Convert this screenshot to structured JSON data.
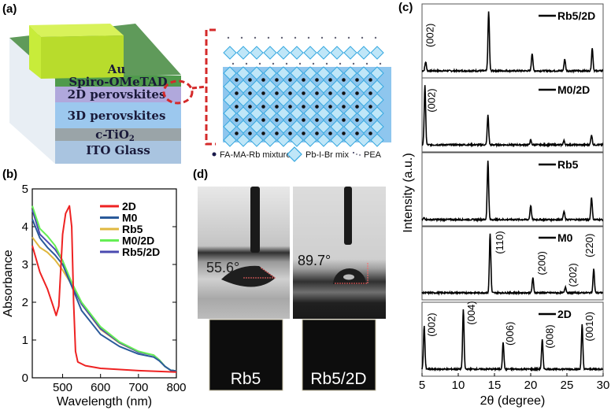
{
  "panel_labels": {
    "a": "(a)",
    "b": "(b)",
    "c": "(c)",
    "d": "(d)"
  },
  "device": {
    "layers": [
      "Au",
      "Spiro-OMeTAD",
      "2D perovskites",
      "3D perovskites",
      "c-TiO",
      "ITO Glass"
    ],
    "tio2_subscript": "2",
    "colors": {
      "au": "#c8ec3a",
      "spiro": "#4f9a4c",
      "perov2d": "#b0a8dc",
      "perov3d": "#9cc8ee",
      "tio2": "#9aa4a8",
      "ito": "#a9c4e0",
      "highlight": "#d42a2a"
    }
  },
  "crystal_legend": {
    "dot": "FA-MA-Rb mixture",
    "octahedron": "Pb-I-Br mix",
    "organic": "PEA"
  },
  "contact_angle": {
    "images": [
      {
        "angle": "55.6°",
        "label": "Rb5"
      },
      {
        "angle": "89.7°",
        "label": "Rb5/2D"
      }
    ]
  },
  "chart_data": [
    {
      "type": "line",
      "panel": "b",
      "xlabel": "Wavelength (nm)",
      "ylabel": "Absorbance",
      "xlim": [
        420,
        800
      ],
      "ylim": [
        0,
        5
      ],
      "xticks": [
        500,
        600,
        700,
        800
      ],
      "yticks": [
        0,
        1,
        2,
        3,
        4,
        5
      ],
      "legend_placement": "top-right",
      "series": [
        {
          "name": "2D",
          "color": "#ee2222",
          "points": [
            [
              420,
              3.5
            ],
            [
              440,
              2.8
            ],
            [
              460,
              2.35
            ],
            [
              475,
              1.9
            ],
            [
              483,
              1.65
            ],
            [
              490,
              1.9
            ],
            [
              500,
              3.8
            ],
            [
              508,
              4.35
            ],
            [
              518,
              4.55
            ],
            [
              524,
              4.0
            ],
            [
              529,
              2.0
            ],
            [
              534,
              0.7
            ],
            [
              540,
              0.42
            ],
            [
              560,
              0.32
            ],
            [
              600,
              0.25
            ],
            [
              700,
              0.19
            ],
            [
              800,
              0.15
            ]
          ]
        },
        {
          "name": "M0",
          "color": "#2a5a9a",
          "points": [
            [
              420,
              4.2
            ],
            [
              440,
              3.7
            ],
            [
              460,
              3.45
            ],
            [
              480,
              3.25
            ],
            [
              500,
              3.0
            ],
            [
              525,
              2.4
            ],
            [
              550,
              1.78
            ],
            [
              600,
              1.15
            ],
            [
              650,
              0.83
            ],
            [
              700,
              0.63
            ],
            [
              740,
              0.55
            ],
            [
              755,
              0.45
            ],
            [
              770,
              0.3
            ],
            [
              785,
              0.2
            ],
            [
              800,
              0.18
            ]
          ]
        },
        {
          "name": "Rb5",
          "color": "#e0b840",
          "points": [
            [
              420,
              3.72
            ],
            [
              440,
              3.45
            ],
            [
              460,
              3.32
            ],
            [
              480,
              3.12
            ],
            [
              500,
              2.85
            ],
            [
              525,
              2.45
            ],
            [
              550,
              1.95
            ],
            [
              600,
              1.28
            ],
            [
              650,
              0.92
            ],
            [
              700,
              0.68
            ],
            [
              740,
              0.6
            ],
            [
              755,
              0.47
            ],
            [
              770,
              0.3
            ],
            [
              785,
              0.2
            ],
            [
              800,
              0.18
            ]
          ]
        },
        {
          "name": "M0/2D",
          "color": "#66ee55",
          "points": [
            [
              420,
              4.55
            ],
            [
              440,
              3.95
            ],
            [
              460,
              3.75
            ],
            [
              480,
              3.5
            ],
            [
              500,
              3.1
            ],
            [
              525,
              2.5
            ],
            [
              550,
              2.0
            ],
            [
              600,
              1.35
            ],
            [
              650,
              0.95
            ],
            [
              700,
              0.7
            ],
            [
              740,
              0.6
            ],
            [
              755,
              0.47
            ],
            [
              770,
              0.3
            ],
            [
              785,
              0.2
            ],
            [
              800,
              0.18
            ]
          ]
        },
        {
          "name": "Rb5/2D",
          "color": "#4a4ab0",
          "points": [
            [
              420,
              4.45
            ],
            [
              440,
              3.8
            ],
            [
              460,
              3.6
            ],
            [
              480,
              3.4
            ],
            [
              500,
              3.1
            ],
            [
              525,
              2.45
            ],
            [
              550,
              1.95
            ],
            [
              600,
              1.3
            ],
            [
              650,
              0.93
            ],
            [
              700,
              0.68
            ],
            [
              740,
              0.6
            ],
            [
              755,
              0.47
            ],
            [
              770,
              0.3
            ],
            [
              785,
              0.2
            ],
            [
              800,
              0.18
            ]
          ]
        }
      ]
    },
    {
      "type": "line",
      "panel": "c",
      "xlabel": "2θ (degree)",
      "ylabel": "Intensity (a.u.)",
      "xlim": [
        5,
        30
      ],
      "xticks": [
        5,
        10,
        15,
        20,
        25,
        30
      ],
      "legend_placement": "top-right",
      "series": [
        {
          "name": "Rb5/2D",
          "peaks": [
            [
              5.5,
              0.15
            ],
            [
              14.2,
              1.0
            ],
            [
              20.2,
              0.3
            ],
            [
              24.7,
              0.2
            ],
            [
              28.5,
              0.38
            ]
          ],
          "annotations": [
            {
              "text": "(002)",
              "x": 6.6,
              "y": 0.6
            }
          ]
        },
        {
          "name": "M0/2D",
          "peaks": [
            [
              5.4,
              1.0
            ],
            [
              14.1,
              0.5
            ],
            [
              20.0,
              0.08
            ],
            [
              24.6,
              0.07
            ],
            [
              28.4,
              0.17
            ]
          ],
          "annotations": [
            {
              "text": "(002)",
              "x": 6.8,
              "y": 0.75
            }
          ]
        },
        {
          "name": "Rb5",
          "peaks": [
            [
              5.3,
              0.03
            ],
            [
              14.1,
              1.0
            ],
            [
              20.0,
              0.24
            ],
            [
              24.6,
              0.14
            ],
            [
              28.4,
              0.38
            ]
          ],
          "annotations": []
        },
        {
          "name": "M0",
          "peaks": [
            [
              14.4,
              1.0
            ],
            [
              20.3,
              0.25
            ],
            [
              24.8,
              0.1
            ],
            [
              28.7,
              0.4
            ]
          ],
          "annotations": [
            {
              "text": "(110)",
              "x": 16.2,
              "y": 0.85
            },
            {
              "text": "(200)",
              "x": 22.0,
              "y": 0.5
            },
            {
              "text": "(202)",
              "x": 26.3,
              "y": 0.3
            },
            {
              "text": "(220)",
              "x": 28.6,
              "y": 0.8
            }
          ]
        },
        {
          "name": "2D",
          "peaks": [
            [
              5.3,
              0.73
            ],
            [
              10.7,
              1.0
            ],
            [
              16.2,
              0.45
            ],
            [
              21.6,
              0.5
            ],
            [
              27.1,
              0.75
            ]
          ],
          "annotations": [
            {
              "text": "(002)",
              "x": 6.8,
              "y": 0.75
            },
            {
              "text": "(004)",
              "x": 12.3,
              "y": 0.95
            },
            {
              "text": "(006)",
              "x": 17.6,
              "y": 0.6
            },
            {
              "text": "(008)",
              "x": 23.1,
              "y": 0.55
            },
            {
              "text": "(0010)",
              "x": 28.6,
              "y": 0.72
            }
          ]
        }
      ]
    }
  ]
}
